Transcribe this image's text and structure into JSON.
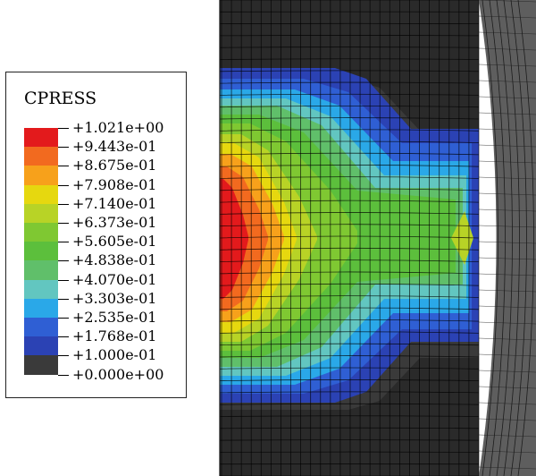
{
  "legend": {
    "title": "CPRESS",
    "values": [
      "+1.021e+00",
      "+9.443e-01",
      "+8.675e-01",
      "+7.908e-01",
      "+7.140e-01",
      "+6.373e-01",
      "+5.605e-01",
      "+4.838e-01",
      "+4.070e-01",
      "+3.303e-01",
      "+2.535e-01",
      "+1.768e-01",
      "+1.000e-01",
      "+0.000e+00"
    ],
    "colors": [
      "#e31a1c",
      "#f26a1f",
      "#f7a11b",
      "#e6d80f",
      "#b8d326",
      "#7fc832",
      "#5cbf3c",
      "#60bf6a",
      "#62c6c0",
      "#2aa8e8",
      "#2f5fd4",
      "#2b42b4",
      "#3a3a3a"
    ]
  },
  "colors": {
    "mesh_background": "#2a2a2a",
    "mesh_lines": "#000000",
    "right_surface": "#5e5e5e"
  }
}
